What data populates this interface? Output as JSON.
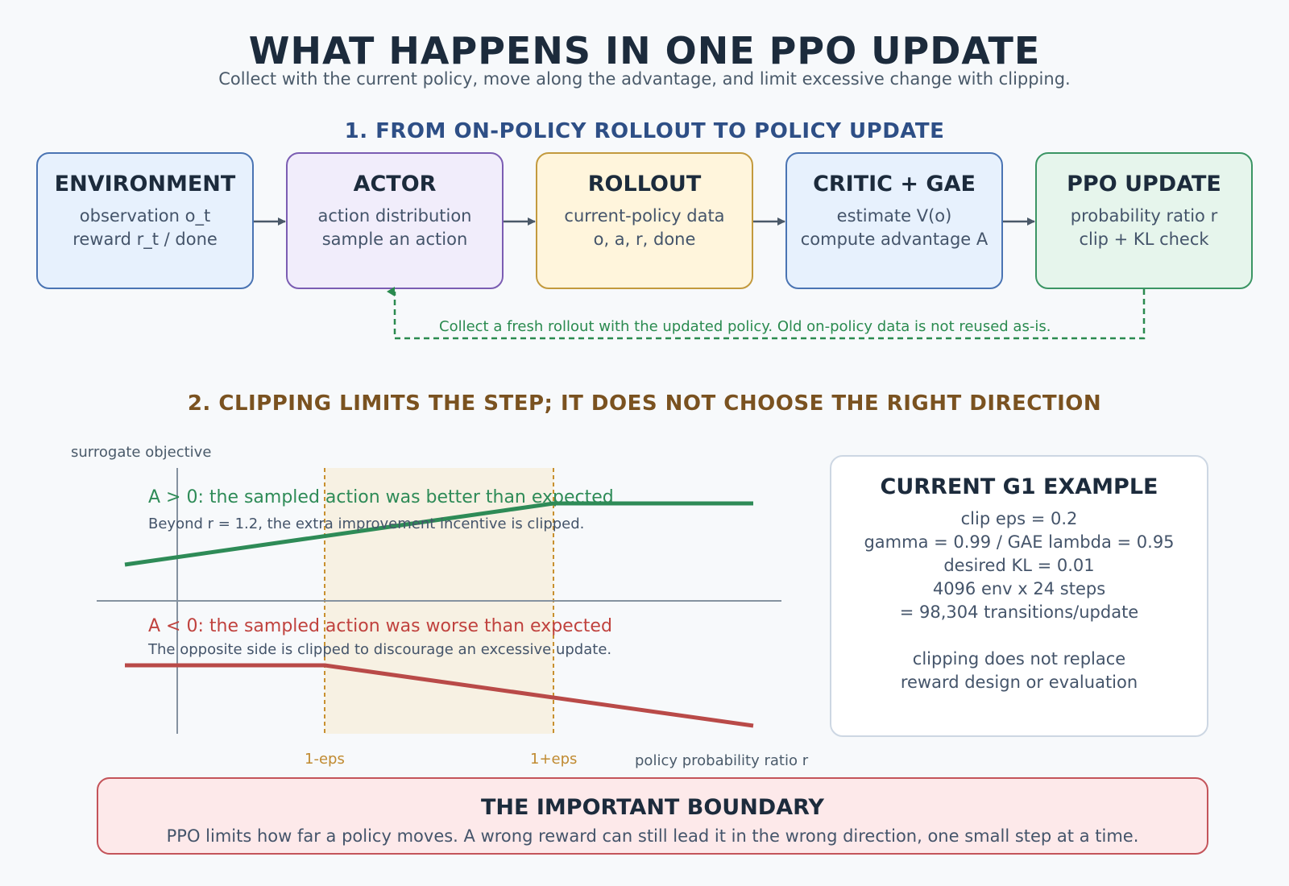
{
  "title": "WHAT HAPPENS IN ONE PPO UPDATE",
  "subtitle": "Collect with the current policy, move along the advantage, and limit excessive change with clipping.",
  "section1": {
    "title": "1. FROM ON-POLICY ROLLOUT TO POLICY UPDATE",
    "nodes": [
      {
        "title": "ENVIRONMENT",
        "lines": [
          "observation o_t",
          "reward r_t / done"
        ]
      },
      {
        "title": "ACTOR",
        "lines": [
          "action distribution",
          "sample an action"
        ]
      },
      {
        "title": "ROLLOUT",
        "lines": [
          "current-policy data",
          "o, a, r, done"
        ]
      },
      {
        "title": "CRITIC + GAE",
        "lines": [
          "estimate V(o)",
          "compute advantage A"
        ]
      },
      {
        "title": "PPO UPDATE",
        "lines": [
          "probability ratio r",
          "clip + KL check"
        ]
      }
    ],
    "loop_label": "Collect a fresh rollout with the updated policy. Old on-policy data is not reused as-is.",
    "colors": {
      "arrow": "#4a5868",
      "loop": "#2a8a4f"
    }
  },
  "section2": {
    "title": "2. CLIPPING LIMITS THE STEP; IT DOES NOT CHOOSE THE RIGHT DIRECTION",
    "y_axis_label": "surrogate objective",
    "x_axis_label": "policy probability ratio r",
    "tick_low": "1-eps",
    "tick_high": "1+eps",
    "positive": {
      "heading": "A > 0: the sampled action was better than expected",
      "note": "Beyond r = 1.2, the extra improvement incentive is clipped.",
      "color": "#2e8b57"
    },
    "negative": {
      "heading": "A < 0: the sampled action was worse than expected",
      "note": "The opposite side is clipped to discourage an excessive update.",
      "color": "#b94a48"
    },
    "clip_band_color": "#f7f1e3",
    "clip_line_color": "#c8902f"
  },
  "example": {
    "title": "CURRENT G1 EXAMPLE",
    "lines": [
      "clip eps = 0.2",
      "gamma = 0.99 / GAE lambda = 0.95",
      "desired KL = 0.01",
      "4096 env x 24 steps",
      "= 98,304 transitions/update",
      "",
      "clipping does not replace",
      "reward design or evaluation"
    ]
  },
  "boundary": {
    "title": "THE IMPORTANT BOUNDARY",
    "body": "PPO limits how far a policy moves. A wrong reward can still lead it in the wrong direction, one small step at a time."
  }
}
